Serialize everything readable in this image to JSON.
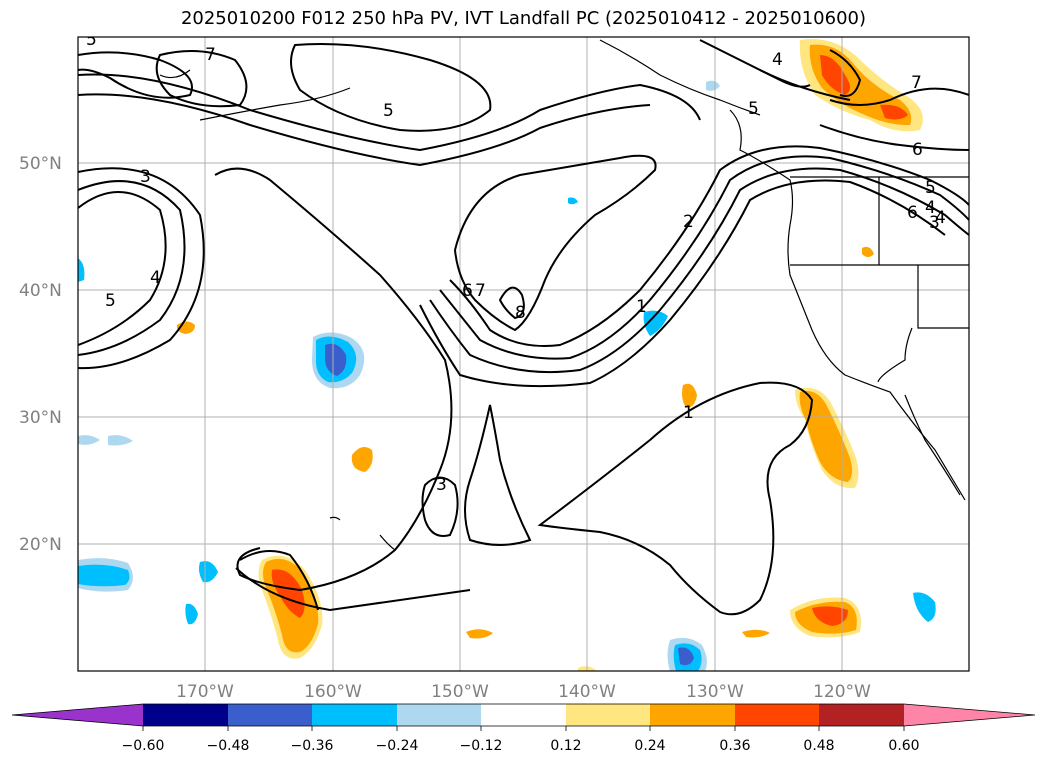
{
  "title": "2025010200 F012 250 hPa PV, IVT Landfall PC (2025010412 - 2025010600)",
  "map": {
    "lon_range": [
      -180,
      -110
    ],
    "lat_range": [
      10,
      60
    ],
    "lat_ticks": [
      "20°N",
      "30°N",
      "40°N",
      "50°N"
    ],
    "lon_ticks": [
      "170°W",
      "160°W",
      "150°W",
      "140°W",
      "130°W",
      "120°W"
    ],
    "grid": true,
    "contour_labels": [
      "7",
      "5",
      "3",
      "4",
      "5",
      "7",
      "6",
      "8",
      "2",
      "1",
      "1",
      "3",
      "4",
      "5",
      "6",
      "7",
      "4",
      "5",
      "6",
      "5",
      "4",
      "3"
    ]
  },
  "colorbar": {
    "ticks": [
      "−0.60",
      "−0.48",
      "−0.36",
      "−0.24",
      "−0.12",
      "0.12",
      "0.24",
      "0.36",
      "0.48",
      "0.60"
    ],
    "colors": [
      "#9933cc",
      "#00008b",
      "#3a5fcd",
      "#00bfff",
      "#add8f0",
      "#ffffff",
      "#ffe680",
      "#ffa500",
      "#ff4500",
      "#b22222",
      "#ff85a8"
    ],
    "extend": "both"
  }
}
